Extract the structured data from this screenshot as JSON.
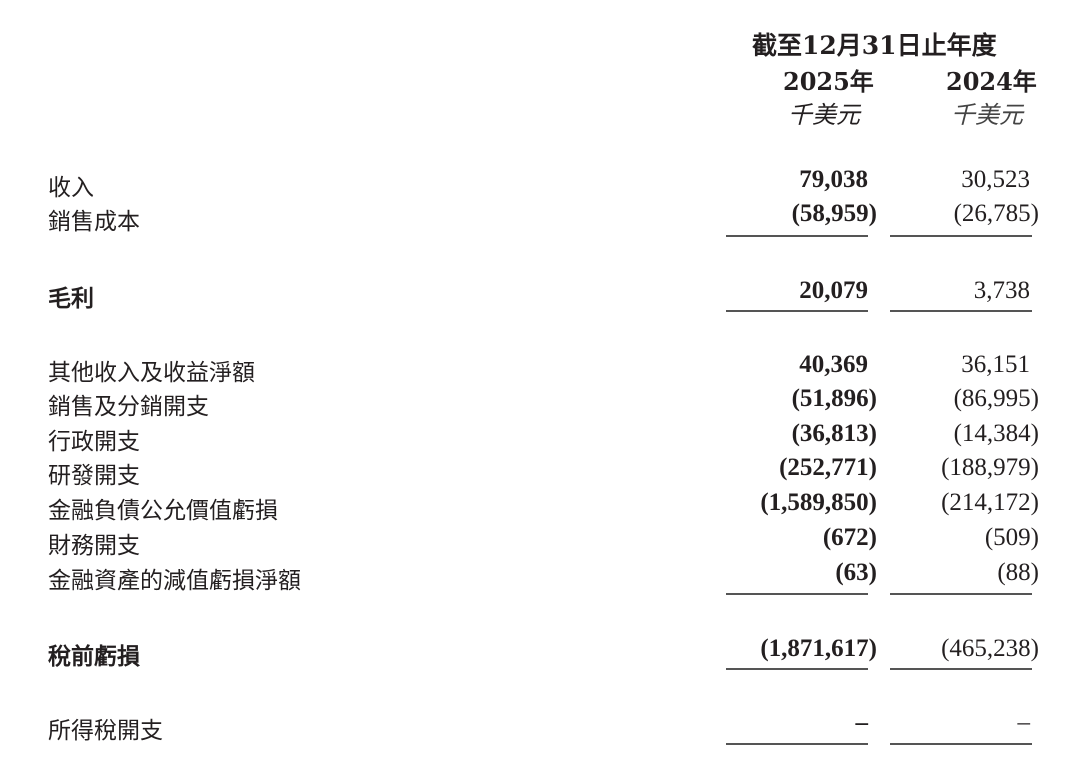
{
  "header": {
    "period": "截至12月31日止年度",
    "columns": [
      {
        "year": "2025年",
        "unit": "千美元"
      },
      {
        "year": "2024年",
        "unit": "千美元"
      }
    ]
  },
  "rows": [
    {
      "label": "收入",
      "bold": false,
      "v2025": "79,038",
      "v2024": "30,523",
      "underline": false
    },
    {
      "label": "銷售成本",
      "bold": false,
      "v2025": "(58,959)",
      "v2024": "(26,785)",
      "underline": true
    },
    {
      "label": "毛利",
      "bold": true,
      "v2025": "20,079",
      "v2024": "3,738",
      "underline": true
    },
    {
      "label": "其他收入及收益淨額",
      "bold": false,
      "v2025": "40,369",
      "v2024": "36,151",
      "underline": false
    },
    {
      "label": "銷售及分銷開支",
      "bold": false,
      "v2025": "(51,896)",
      "v2024": "(86,995)",
      "underline": false
    },
    {
      "label": "行政開支",
      "bold": false,
      "v2025": "(36,813)",
      "v2024": "(14,384)",
      "underline": false
    },
    {
      "label": "研發開支",
      "bold": false,
      "v2025": "(252,771)",
      "v2024": "(188,979)",
      "underline": false
    },
    {
      "label": "金融負債公允價值虧損",
      "bold": false,
      "v2025": "(1,589,850)",
      "v2024": "(214,172)",
      "underline": false
    },
    {
      "label": "財務開支",
      "bold": false,
      "v2025": "(672)",
      "v2024": "(509)",
      "underline": false
    },
    {
      "label": "金融資產的減值虧損淨額",
      "bold": false,
      "v2025": "(63)",
      "v2024": "(88)",
      "underline": true
    },
    {
      "label": "稅前虧損",
      "bold": true,
      "v2025": "(1,871,617)",
      "v2024": "(465,238)",
      "underline": true
    },
    {
      "label": "所得稅開支",
      "bold": false,
      "v2025": "–",
      "v2024": "–",
      "underline": true
    }
  ]
}
